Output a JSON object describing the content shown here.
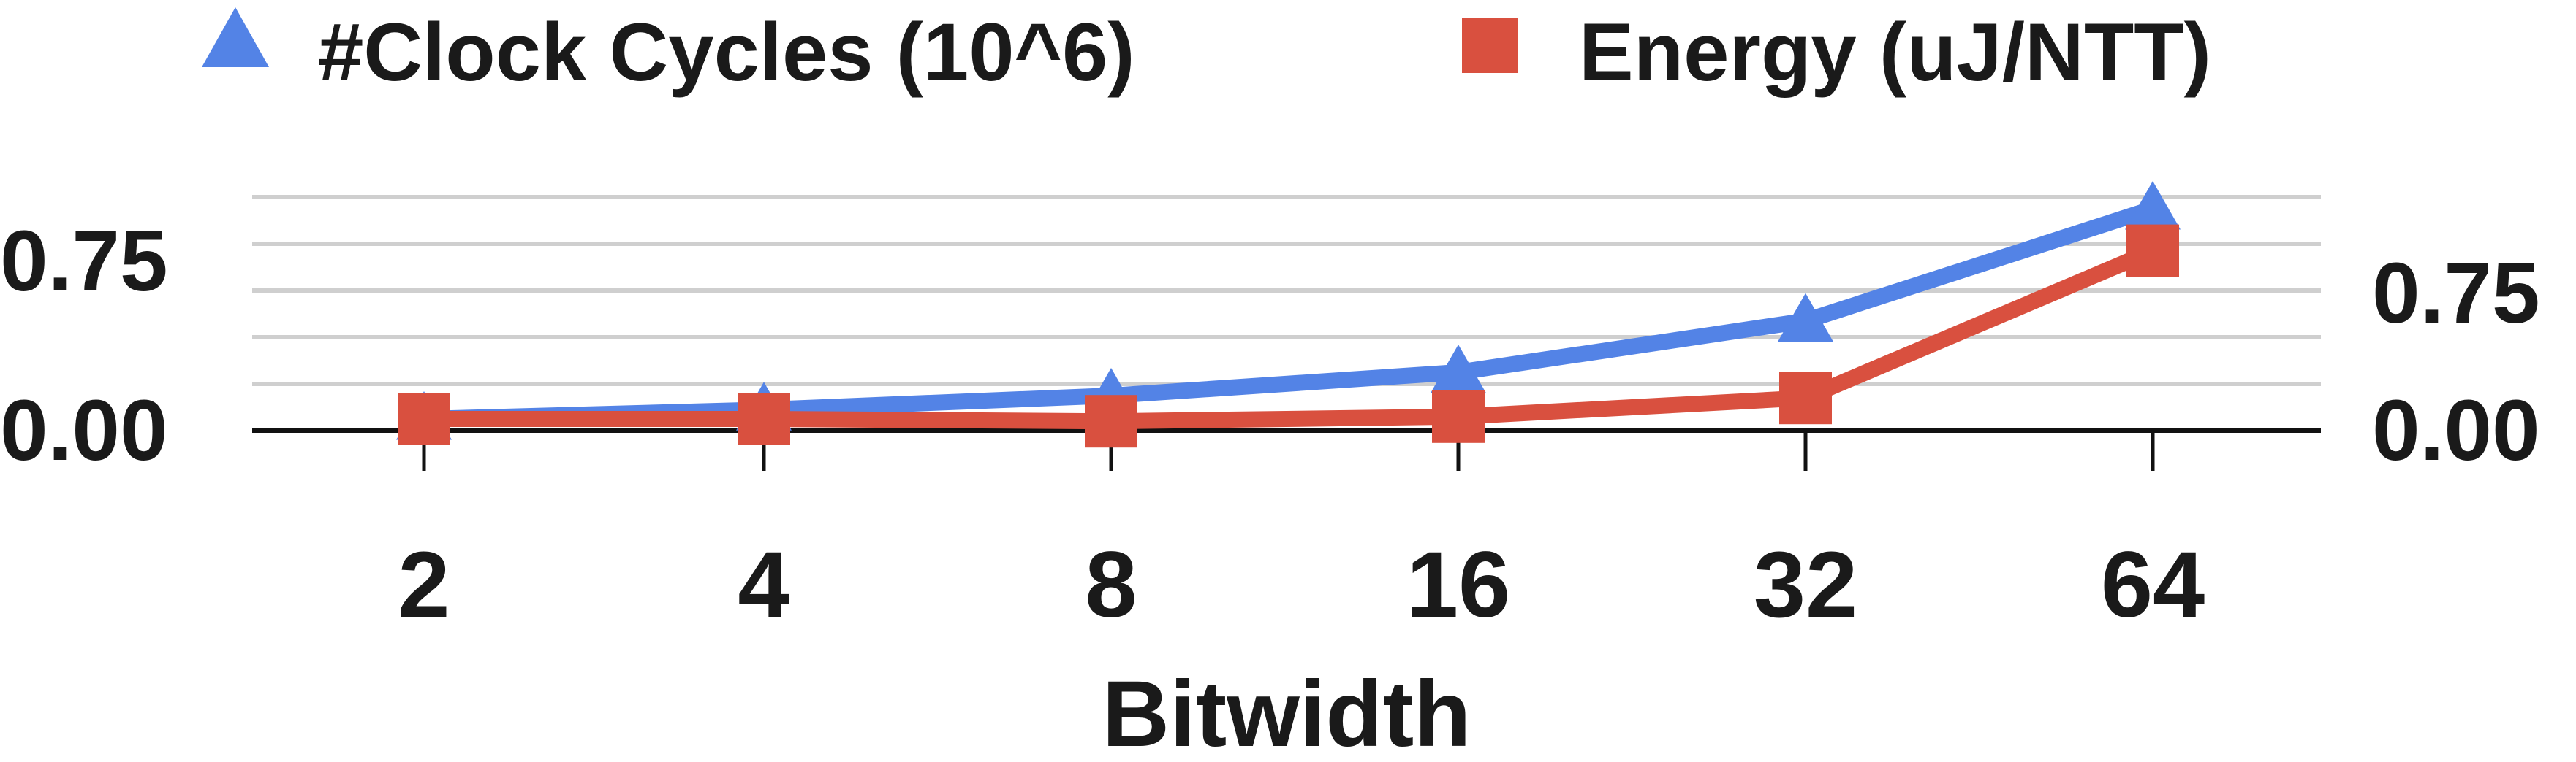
{
  "chart_data": {
    "type": "line",
    "x_label": "Bitwidth",
    "categories": [
      "2",
      "4",
      "8",
      "16",
      "32",
      "64"
    ],
    "grid": true,
    "legend_position": "top",
    "left_axis": {
      "ticks": [
        "0.75",
        "0.00"
      ],
      "tick_values": [
        0.75,
        0.0
      ],
      "ylim": [
        0,
        1.0
      ]
    },
    "right_axis": {
      "ticks": [
        "0.75",
        "0.00"
      ],
      "tick_values": [
        0.75,
        0.0
      ],
      "ylim": [
        0,
        1.0
      ]
    },
    "series": [
      {
        "name": "#Clock Cycles (10^6)",
        "marker": "triangle",
        "color": "#5383E6",
        "axis": "left",
        "values": [
          0.05,
          0.09,
          0.15,
          0.25,
          0.47,
          0.95
        ]
      },
      {
        "name": "Energy (uJ/NTT)",
        "marker": "square",
        "color": "#D9503F",
        "axis": "right",
        "values": [
          0.05,
          0.05,
          0.04,
          0.06,
          0.14,
          0.77
        ]
      }
    ]
  }
}
